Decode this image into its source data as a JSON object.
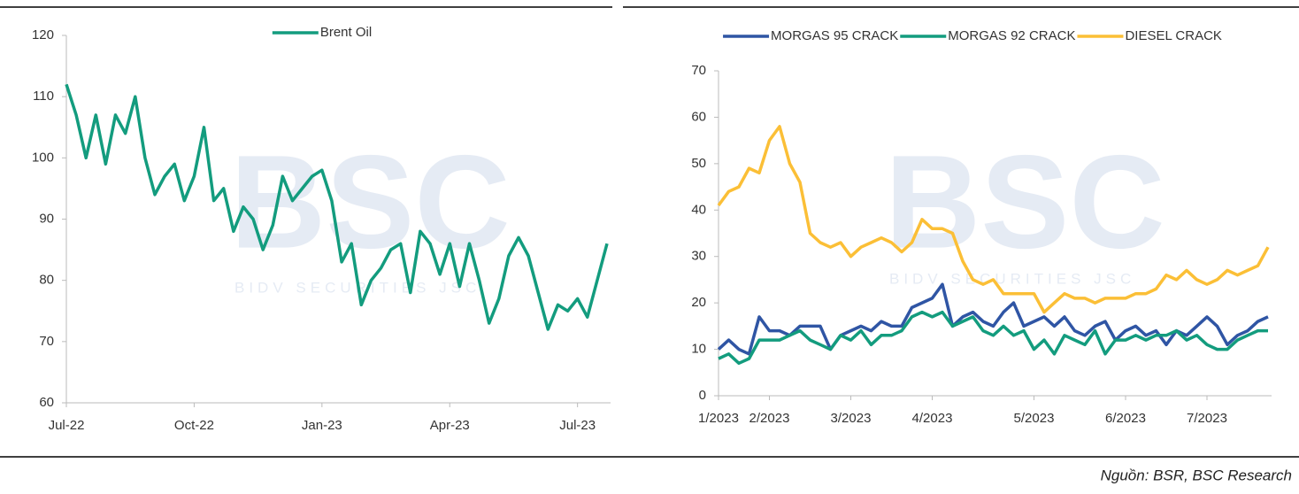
{
  "chart_data": [
    {
      "type": "line",
      "categories": [
        "Jul-22",
        null,
        null,
        null,
        null,
        null,
        null,
        null,
        null,
        null,
        null,
        null,
        null,
        "Oct-22",
        null,
        null,
        null,
        null,
        null,
        null,
        null,
        null,
        null,
        null,
        null,
        null,
        "Jan-23",
        null,
        null,
        null,
        null,
        null,
        null,
        null,
        null,
        null,
        null,
        null,
        null,
        "Apr-23",
        null,
        null,
        null,
        null,
        null,
        null,
        null,
        null,
        null,
        null,
        null,
        null,
        "Jul-23",
        null,
        null,
        null
      ],
      "series": [
        {
          "name": "Brent Oil",
          "color": "#139c7e",
          "values": [
            112,
            107,
            100,
            107,
            99,
            107,
            104,
            110,
            100,
            94,
            97,
            99,
            93,
            97,
            105,
            93,
            95,
            88,
            92,
            90,
            85,
            89,
            97,
            93,
            95,
            97,
            98,
            93,
            83,
            86,
            76,
            80,
            82,
            85,
            86,
            78,
            88,
            86,
            81,
            86,
            79,
            86,
            80,
            73,
            77,
            84,
            87,
            84,
            78,
            72,
            76,
            75,
            77,
            74,
            80,
            86
          ]
        }
      ],
      "ylim": [
        60,
        120
      ],
      "yticks": [
        60,
        70,
        80,
        90,
        100,
        110,
        120
      ],
      "legend": "top"
    },
    {
      "type": "line",
      "categories": [
        "1/2023",
        null,
        null,
        null,
        null,
        "2/2023",
        null,
        null,
        null,
        null,
        null,
        null,
        null,
        "3/2023",
        null,
        null,
        null,
        null,
        null,
        null,
        null,
        "4/2023",
        null,
        null,
        null,
        null,
        null,
        null,
        null,
        null,
        null,
        "5/2023",
        null,
        null,
        null,
        null,
        null,
        null,
        null,
        null,
        "6/2023",
        null,
        null,
        null,
        null,
        null,
        null,
        null,
        "7/2023",
        null,
        null,
        null,
        null,
        null,
        null
      ],
      "series": [
        {
          "name": "MORGAS 95 CRACK",
          "color": "#2f55a4",
          "values": [
            10,
            12,
            10,
            9,
            17,
            14,
            14,
            13,
            15,
            15,
            15,
            10,
            13,
            14,
            15,
            14,
            16,
            15,
            15,
            19,
            20,
            21,
            24,
            15,
            17,
            18,
            16,
            15,
            18,
            20,
            15,
            16,
            17,
            15,
            17,
            14,
            13,
            15,
            16,
            12,
            14,
            15,
            13,
            14,
            11,
            14,
            13,
            15,
            17,
            15,
            11,
            13,
            14,
            16,
            17
          ]
        },
        {
          "name": "MORGAS 92 CRACK",
          "color": "#139c7e",
          "values": [
            8,
            9,
            7,
            8,
            12,
            12,
            12,
            13,
            14,
            12,
            11,
            10,
            13,
            12,
            14,
            11,
            13,
            13,
            14,
            17,
            18,
            17,
            18,
            15,
            16,
            17,
            14,
            13,
            15,
            13,
            14,
            10,
            12,
            9,
            13,
            12,
            11,
            14,
            9,
            12,
            12,
            13,
            12,
            13,
            13,
            14,
            12,
            13,
            11,
            10,
            10,
            12,
            13,
            14,
            14
          ]
        },
        {
          "name": "DIESEL CRACK",
          "color": "#fbbf36",
          "values": [
            41,
            44,
            45,
            49,
            48,
            55,
            58,
            50,
            46,
            35,
            33,
            32,
            33,
            30,
            32,
            33,
            34,
            33,
            31,
            33,
            38,
            36,
            36,
            35,
            29,
            25,
            24,
            25,
            22,
            22,
            22,
            22,
            18,
            20,
            22,
            21,
            21,
            20,
            21,
            21,
            21,
            22,
            22,
            23,
            26,
            25,
            27,
            25,
            24,
            25,
            27,
            26,
            27,
            28,
            32
          ]
        }
      ],
      "ylim": [
        0,
        70
      ],
      "yticks": [
        0,
        10,
        20,
        30,
        40,
        50,
        60,
        70
      ],
      "legend": "top"
    }
  ],
  "watermark": {
    "logo": "BSC",
    "tagline": "BIDV SECURITIES JSC"
  },
  "source": "Nguồn: BSR, BSC Research"
}
